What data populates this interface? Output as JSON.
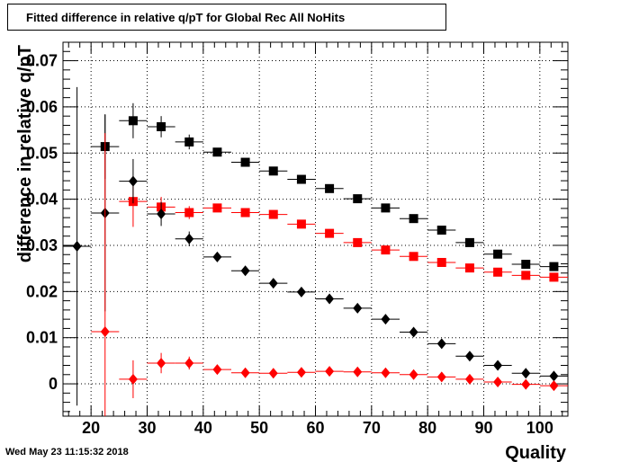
{
  "header": {
    "title": "Fitted difference in relative q/pT  for Global Rec All NoHits"
  },
  "footer": {
    "timestamp": "Wed May 23 11:15:32 2018"
  },
  "chart_data": {
    "type": "scatter",
    "title": "Fitted difference in relative q/pT  for Global Rec All NoHits",
    "xlabel": "Quality",
    "ylabel": "difference in relative q/pT",
    "xlim": [
      15,
      105
    ],
    "ylim": [
      -0.007,
      0.074
    ],
    "grid": true,
    "x_ticks": [
      20,
      30,
      40,
      50,
      60,
      70,
      80,
      90,
      100
    ],
    "x_tick_labels": [
      "20",
      "30",
      "40",
      "50",
      "60",
      "70",
      "80",
      "90",
      "100"
    ],
    "y_ticks": [
      0,
      0.01,
      0.02,
      0.03,
      0.04,
      0.05,
      0.06,
      0.07
    ],
    "y_tick_labels": [
      "0",
      "0.01",
      "0.02",
      "0.03",
      "0.04",
      "0.05",
      "0.06",
      "0.07"
    ],
    "series": [
      {
        "marker": "square",
        "color": "#000000",
        "x": [
          22.5,
          27.5,
          32.5,
          37.5,
          42.5,
          47.5,
          52.5,
          57.5,
          62.5,
          67.5,
          72.5,
          77.5,
          82.5,
          87.5,
          92.5,
          97.5,
          102.5
        ],
        "y": [
          0.0514,
          0.057,
          0.0557,
          0.0524,
          0.0502,
          0.048,
          0.0461,
          0.0443,
          0.0423,
          0.0401,
          0.0381,
          0.0358,
          0.0333,
          0.0306,
          0.0281,
          0.0259,
          0.0254
        ],
        "yerr": [
          0.007,
          0.0038,
          0.0023,
          0.0016,
          0.0008,
          0.0006,
          0.0005,
          0.0005,
          0.0005,
          0.0005,
          0.0005,
          0.0005,
          0.0005,
          0.0005,
          0.0005,
          0.0005,
          0.0005
        ]
      },
      {
        "marker": "square",
        "color": "#ff0000",
        "x": [
          22.5,
          27.5,
          32.5,
          37.5,
          42.5,
          47.5,
          52.5,
          57.5,
          62.5,
          67.5,
          72.5,
          77.5,
          82.5,
          87.5,
          92.5,
          97.5,
          102.5
        ],
        "y": [
          null,
          0.0395,
          0.0383,
          0.0371,
          0.0381,
          0.0371,
          0.0367,
          0.0346,
          0.0326,
          0.0306,
          0.029,
          0.0276,
          0.0263,
          0.0251,
          0.0242,
          0.0235,
          0.0231
        ],
        "yerr": [
          0,
          0.0055,
          0.0022,
          0.0014,
          0.0009,
          0.0006,
          0.0005,
          0.0005,
          0.0005,
          0.0005,
          0.0005,
          0.0005,
          0.0005,
          0.0005,
          0.0005,
          0.0005,
          0.0005
        ]
      },
      {
        "marker": "diamond",
        "color": "#000000",
        "x": [
          17.5,
          22.5,
          27.5,
          32.5,
          37.5,
          42.5,
          47.5,
          52.5,
          57.5,
          62.5,
          67.5,
          72.5,
          77.5,
          82.5,
          87.5,
          92.5,
          97.5,
          102.5
        ],
        "y": [
          0.0298,
          0.037,
          0.0439,
          0.0368,
          0.0314,
          0.0275,
          0.0245,
          0.0218,
          0.0199,
          0.0184,
          0.0164,
          0.014,
          0.0112,
          0.0087,
          0.006,
          0.004,
          0.0023,
          0.0017
        ],
        "yerr": [
          0.0345,
          0.0213,
          0.0048,
          0.0026,
          0.0016,
          0.0008,
          0.0006,
          0.0005,
          0.0005,
          0.0005,
          0.0005,
          0.0005,
          0.0005,
          0.0005,
          0.0005,
          0.0005,
          0.0005,
          0.0005
        ]
      },
      {
        "marker": "diamond",
        "color": "#ff0000",
        "x": [
          22.5,
          27.5,
          32.5,
          37.5,
          42.5,
          47.5,
          52.5,
          57.5,
          62.5,
          67.5,
          72.5,
          77.5,
          82.5,
          87.5,
          92.5,
          97.5,
          102.5
        ],
        "y": [
          0.0113,
          0.001,
          0.0045,
          0.0045,
          0.0031,
          0.0024,
          0.0023,
          0.0025,
          0.0027,
          0.0026,
          0.0024,
          0.002,
          0.0015,
          0.001,
          0.0004,
          -0.0001,
          -0.0004
        ],
        "yerr": [
          0.043,
          0.0041,
          0.0022,
          0.0014,
          0.0007,
          0.0005,
          0.0005,
          0.0005,
          0.0005,
          0.0005,
          0.0005,
          0.0005,
          0.0005,
          0.0005,
          0.0005,
          0.0005,
          0.0005
        ]
      }
    ]
  }
}
